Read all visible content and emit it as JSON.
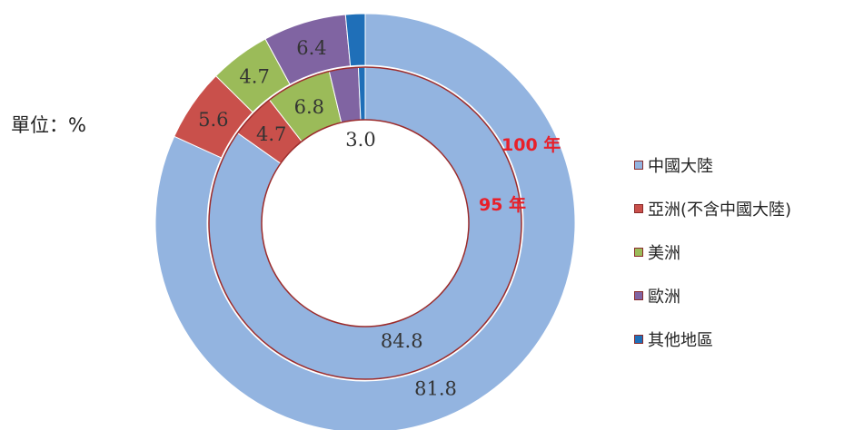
{
  "unit_label": "單位：%",
  "chart_data": {
    "type": "pie",
    "subtype": "donut",
    "categories": [
      "中國大陸",
      "亞洲(不含中國大陸)",
      "美洲",
      "歐洲",
      "其他地區"
    ],
    "colors": [
      "#93b4e0",
      "#c9504b",
      "#9bbb59",
      "#8064a2",
      "#1f6fb8"
    ],
    "series": [
      {
        "name": "100 年",
        "ring": "outer",
        "values": [
          81.8,
          5.6,
          4.7,
          6.4,
          1.5
        ]
      },
      {
        "name": "95 年",
        "ring": "inner",
        "values": [
          84.8,
          4.7,
          6.8,
          3.0,
          0.7
        ]
      }
    ],
    "data_labels": {
      "outer": [
        "81.8",
        "5.6",
        "4.7",
        "6.4",
        ""
      ],
      "inner": [
        "84.8",
        "4.7",
        "6.8",
        "3.0",
        ""
      ]
    },
    "legend_position": "right"
  }
}
